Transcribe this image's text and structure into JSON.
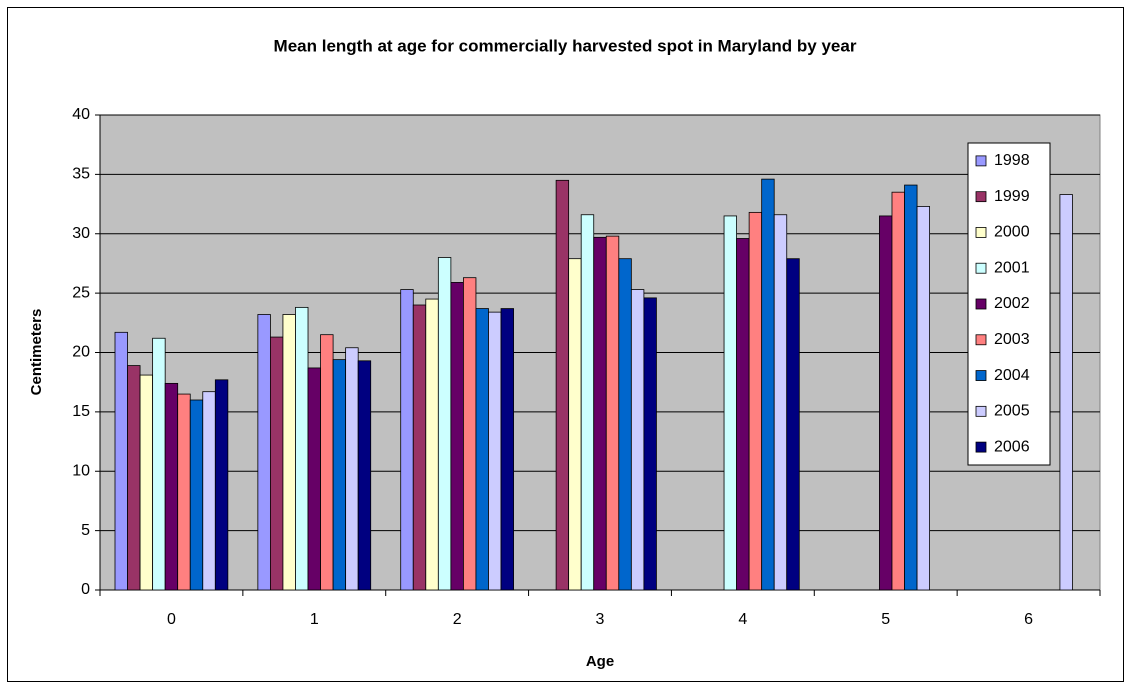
{
  "chart_data": {
    "type": "bar",
    "title": "Mean length at age for commercially harvested spot in Maryland by year",
    "x_label": "Age",
    "y_label": "Centimeters",
    "categories": [
      "0",
      "1",
      "2",
      "3",
      "4",
      "5",
      "6"
    ],
    "series": [
      {
        "name": "1998",
        "color": "#9999ff",
        "values": [
          21.7,
          23.2,
          25.3,
          null,
          null,
          null,
          null
        ]
      },
      {
        "name": "1999",
        "color": "#993366",
        "values": [
          18.9,
          21.3,
          24.0,
          34.5,
          null,
          null,
          null
        ]
      },
      {
        "name": "2000",
        "color": "#ffffcc",
        "values": [
          18.1,
          23.2,
          24.5,
          27.9,
          null,
          null,
          null
        ]
      },
      {
        "name": "2001",
        "color": "#ccffff",
        "values": [
          21.2,
          23.8,
          28.0,
          31.6,
          31.5,
          null,
          null
        ]
      },
      {
        "name": "2002",
        "color": "#660066",
        "values": [
          17.4,
          18.7,
          25.9,
          29.7,
          29.6,
          31.5,
          null
        ]
      },
      {
        "name": "2003",
        "color": "#ff8080",
        "values": [
          16.5,
          21.5,
          26.3,
          29.8,
          31.8,
          33.5,
          null
        ]
      },
      {
        "name": "2004",
        "color": "#0066cc",
        "values": [
          16.0,
          19.4,
          23.7,
          27.9,
          34.6,
          34.1,
          null
        ]
      },
      {
        "name": "2005",
        "color": "#ccccff",
        "values": [
          16.7,
          20.4,
          23.4,
          25.3,
          31.6,
          32.3,
          33.3
        ]
      },
      {
        "name": "2006",
        "color": "#000080",
        "values": [
          17.7,
          19.3,
          23.7,
          24.6,
          27.9,
          null,
          null
        ]
      }
    ],
    "ylim": [
      0,
      40
    ],
    "yticks": [
      0,
      5,
      10,
      15,
      20,
      25,
      30,
      35,
      40
    ],
    "grid": true,
    "legend": "right"
  }
}
